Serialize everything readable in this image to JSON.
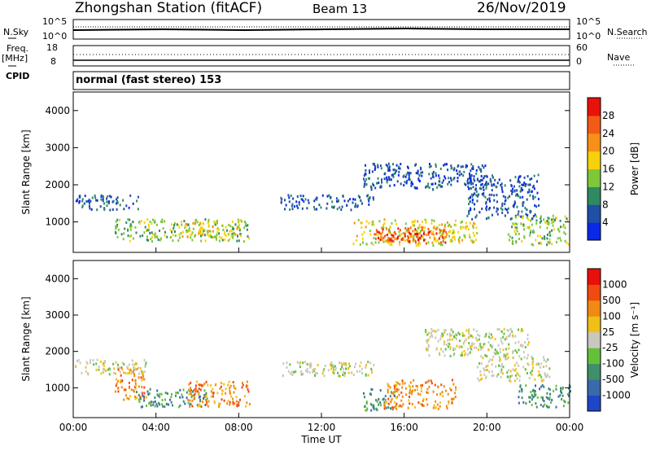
{
  "header": {
    "station": "Zhongshan Station (fitACF)",
    "beam": "Beam 13",
    "date": "26/Nov/2019"
  },
  "top_strip": {
    "left_label": "N.Sky",
    "right_label": "N.Search",
    "left_ticks": [
      "10^5",
      "10^0"
    ],
    "right_ticks": [
      "10^5",
      "10^0"
    ]
  },
  "freq_strip": {
    "left_label_1": "Freq.",
    "left_label_2": "[MHz]",
    "right_label": "Nave",
    "left_ticks": [
      "18",
      "8"
    ],
    "right_ticks": [
      "60",
      "0"
    ]
  },
  "cpid": {
    "label": "CPID",
    "text": "normal (fast stereo)  153"
  },
  "chart_data": [
    {
      "type": "heatmap",
      "quantity": "Power",
      "ylabel": "Slant Range [km]",
      "colorbar_label": "Power [dB]",
      "ylim": [
        180,
        4500
      ],
      "xlim_hours": [
        0,
        24
      ],
      "yticks": [
        1000,
        2000,
        3000,
        4000
      ],
      "colorbar_ticks": [
        4,
        8,
        12,
        16,
        20,
        24,
        28
      ],
      "colors": [
        "#0a28e8",
        "#1f4fa6",
        "#2f8a62",
        "#7ec83a",
        "#f7d20a",
        "#f79018",
        "#f25a16",
        "#e8120a"
      ],
      "regions": [
        {
          "t": [
            0.0,
            3.2
          ],
          "r": [
            1350,
            1750
          ],
          "level": 1
        },
        {
          "t": [
            2.0,
            8.5
          ],
          "r": [
            500,
            1100
          ],
          "level": 3
        },
        {
          "t": [
            5.0,
            8.0
          ],
          "r": [
            600,
            1050
          ],
          "level": 4
        },
        {
          "t": [
            10.0,
            14.5
          ],
          "r": [
            1350,
            1750
          ],
          "level": 1
        },
        {
          "t": [
            13.5,
            19.5
          ],
          "r": [
            400,
            1100
          ],
          "level": 4
        },
        {
          "t": [
            14.5,
            18.0
          ],
          "r": [
            450,
            900
          ],
          "level": 6
        },
        {
          "t": [
            15.2,
            16.8
          ],
          "r": [
            500,
            750
          ],
          "level": 7
        },
        {
          "t": [
            14.0,
            20.0
          ],
          "r": [
            1900,
            2600
          ],
          "level": 1
        },
        {
          "t": [
            19.0,
            22.5
          ],
          "r": [
            1100,
            2300
          ],
          "level": 1
        },
        {
          "t": [
            21.0,
            24.0
          ],
          "r": [
            400,
            1200
          ],
          "level": 3
        }
      ]
    },
    {
      "type": "heatmap",
      "quantity": "Velocity",
      "ylabel": "Slant Range [km]",
      "xlabel": "Time UT",
      "colorbar_label": "Velocity [m s^-1]",
      "ylim": [
        180,
        4500
      ],
      "xlim_hours": [
        0,
        24
      ],
      "yticks": [
        1000,
        2000,
        3000,
        4000
      ],
      "xticks": [
        "00:00",
        "04:00",
        "08:00",
        "12:00",
        "16:00",
        "20:00",
        "00:00"
      ],
      "colorbar_ticks": [
        "1000",
        "500",
        "100",
        "25",
        "-25",
        "-100",
        "-500",
        "-1000"
      ],
      "colors": [
        "#1e46c8",
        "#3a6aa8",
        "#3f8f6a",
        "#62c03a",
        "#c8c8c0",
        "#f0c018",
        "#f08a14",
        "#f04a10",
        "#e8100a"
      ],
      "regions": [
        {
          "t": [
            0.0,
            3.5
          ],
          "r": [
            1400,
            1800
          ],
          "level": 4
        },
        {
          "t": [
            2.0,
            3.5
          ],
          "r": [
            700,
            1600
          ],
          "level": 6
        },
        {
          "t": [
            3.0,
            6.5
          ],
          "r": [
            500,
            1000
          ],
          "level": 2
        },
        {
          "t": [
            5.5,
            8.5
          ],
          "r": [
            500,
            1200
          ],
          "level": 6
        },
        {
          "t": [
            10.0,
            14.5
          ],
          "r": [
            1350,
            1750
          ],
          "level": 4
        },
        {
          "t": [
            14.0,
            15.5
          ],
          "r": [
            400,
            1000
          ],
          "level": 2
        },
        {
          "t": [
            15.0,
            18.5
          ],
          "r": [
            450,
            1250
          ],
          "level": 6
        },
        {
          "t": [
            17.0,
            22.0
          ],
          "r": [
            1900,
            2650
          ],
          "level": 4
        },
        {
          "t": [
            19.5,
            23.0
          ],
          "r": [
            1200,
            1900
          ],
          "level": 4
        },
        {
          "t": [
            21.5,
            24.0
          ],
          "r": [
            500,
            1100
          ],
          "level": 2
        }
      ]
    }
  ]
}
